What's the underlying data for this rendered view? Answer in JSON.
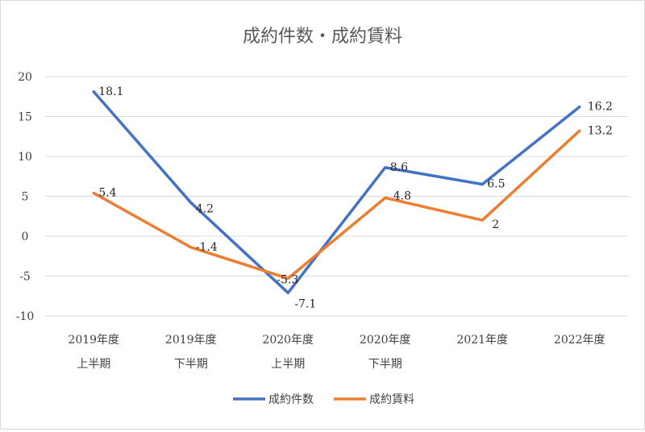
{
  "chart_data": {
    "type": "line",
    "title": "成約件数・成約賃料",
    "xlabel": "",
    "ylabel": "",
    "ylim": [
      -10,
      20
    ],
    "yticks": [
      20,
      15,
      10,
      5,
      0,
      -5,
      -10
    ],
    "yticklabels": [
      "20",
      "15",
      "10",
      "5",
      "0",
      "-5",
      "-10"
    ],
    "grid": true,
    "legend_position": "bottom",
    "categories": [
      [
        "2019年度",
        "上半期"
      ],
      [
        "2019年度",
        "下半期"
      ],
      [
        "2020年度",
        "上半期"
      ],
      [
        "2020年度",
        "下半期"
      ],
      [
        "2021年度"
      ],
      [
        "2022年度"
      ]
    ],
    "series": [
      {
        "name": "成約件数",
        "color": "#4472C4",
        "values": [
          18.1,
          4.2,
          -7.1,
          8.6,
          6.5,
          16.2
        ],
        "labels": [
          "18.1",
          "4.2",
          "-7.1",
          "8.6",
          "6.5",
          "16.2"
        ]
      },
      {
        "name": "成約賃料",
        "color": "#ED7D31",
        "values": [
          5.4,
          -1.4,
          -5.3,
          4.8,
          2,
          13.2
        ],
        "labels": [
          "5.4",
          "-1.4",
          "-5.3",
          "4.8",
          "2",
          "13.2"
        ]
      }
    ]
  }
}
